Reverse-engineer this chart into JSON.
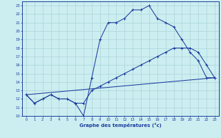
{
  "xlabel": "Graphe des températures (°c)",
  "bg_color": "#cceef0",
  "line_color": "#1a3a9c",
  "grid_color": "#aad4d8",
  "xlim": [
    -0.5,
    23.5
  ],
  "ylim": [
    10,
    23.5
  ],
  "yticks": [
    10,
    11,
    12,
    13,
    14,
    15,
    16,
    17,
    18,
    19,
    20,
    21,
    22,
    23
  ],
  "xticks": [
    0,
    1,
    2,
    3,
    4,
    5,
    6,
    7,
    8,
    9,
    10,
    11,
    12,
    13,
    14,
    15,
    16,
    17,
    18,
    19,
    20,
    21,
    22,
    23
  ],
  "line1_x": [
    0,
    1,
    2,
    3,
    4,
    5,
    6,
    7,
    8,
    9,
    10,
    11,
    12,
    13,
    14,
    15,
    16,
    17,
    18,
    19,
    20,
    21,
    22,
    23
  ],
  "line1_y": [
    12.5,
    11.5,
    12.0,
    12.5,
    12.0,
    12.0,
    11.5,
    10.0,
    14.5,
    19.0,
    21.0,
    21.0,
    21.5,
    22.5,
    22.5,
    23.0,
    21.5,
    21.0,
    20.5,
    19.0,
    17.5,
    16.5,
    14.5,
    14.5
  ],
  "line2_x": [
    0,
    1,
    2,
    3,
    4,
    5,
    6,
    7,
    8,
    9,
    10,
    11,
    12,
    13,
    14,
    15,
    16,
    17,
    18,
    19,
    20,
    21,
    22,
    23
  ],
  "line2_y": [
    12.5,
    11.5,
    12.0,
    12.5,
    12.0,
    12.0,
    11.5,
    11.5,
    13.0,
    13.5,
    14.0,
    14.5,
    15.0,
    15.5,
    16.0,
    16.5,
    17.0,
    17.5,
    18.0,
    18.0,
    18.0,
    17.5,
    16.0,
    14.5
  ],
  "line3_x": [
    0,
    23
  ],
  "line3_y": [
    12.5,
    14.5
  ]
}
